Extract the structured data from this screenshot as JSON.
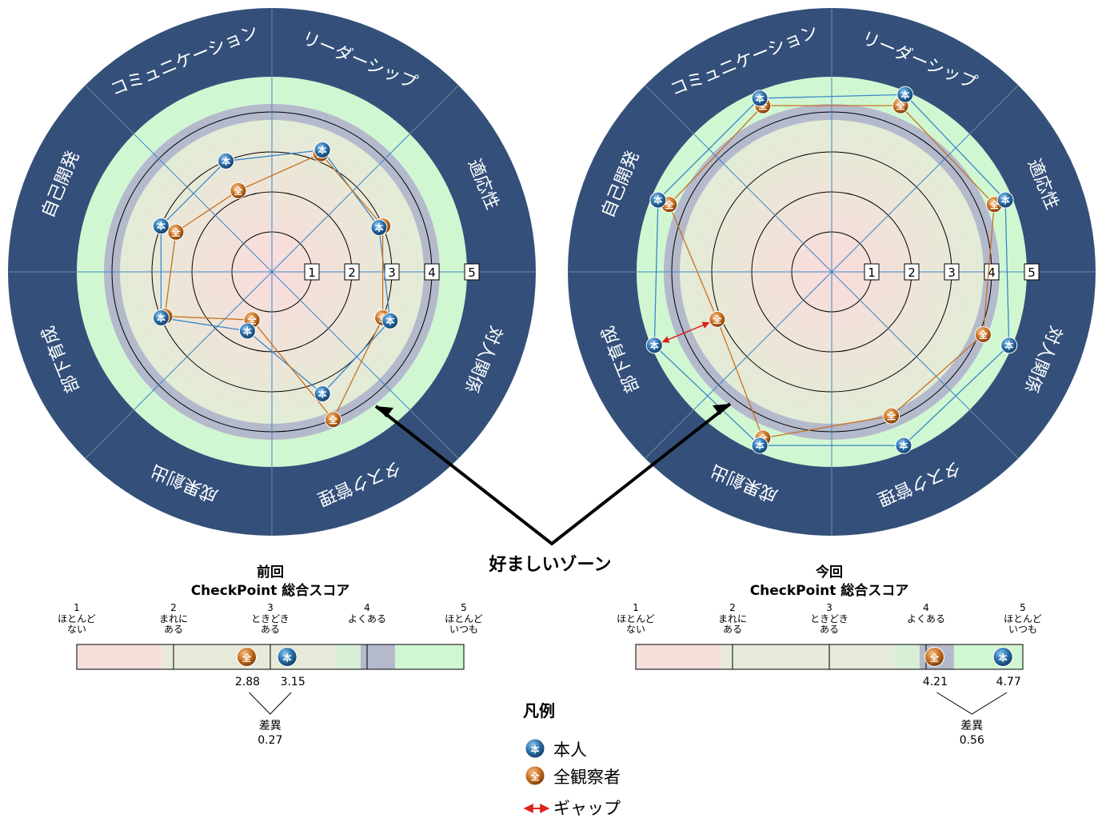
{
  "chart_data": [
    {
      "type": "radar",
      "panel": "previous",
      "categories": [
        "リーダーシップ",
        "適応性",
        "対人関係",
        "タスク管理",
        "成果創出",
        "部下育成",
        "自己開発",
        "コミュニケーション"
      ],
      "scale_labels": [
        "1",
        "2",
        "3",
        "4",
        "5"
      ],
      "rlim": [
        0,
        5
      ],
      "preferred_zone": [
        3.8,
        4.2
      ],
      "series": [
        {
          "name": "本人",
          "marker": "本",
          "color": "#2a6fa8",
          "line_color": "#3a86c8",
          "values": [
            3.3,
            2.9,
            3.2,
            3.3,
            1.6,
            3.0,
            3.0,
            3.0
          ]
        },
        {
          "name": "全観察者",
          "marker": "全",
          "color": "#c8701e",
          "line_color": "#c8701e",
          "values": [
            3.2,
            3.0,
            3.0,
            4.0,
            1.3,
            2.9,
            2.6,
            2.2
          ]
        }
      ],
      "gap_category": "成果創出"
    },
    {
      "type": "radar",
      "panel": "current",
      "categories": [
        "リーダーシップ",
        "適応性",
        "対人関係",
        "タスク管理",
        "成果創出",
        "部下育成",
        "自己開発",
        "コミュニケーション"
      ],
      "scale_labels": [
        "1",
        "2",
        "3",
        "4",
        "5"
      ],
      "rlim": [
        0,
        5
      ],
      "preferred_zone": [
        3.8,
        4.2
      ],
      "series": [
        {
          "name": "本人",
          "marker": "本",
          "color": "#2a6fa8",
          "line_color": "#3a86c8",
          "values": [
            4.8,
            4.7,
            4.8,
            4.7,
            4.7,
            4.8,
            4.7,
            4.7
          ]
        },
        {
          "name": "全観察者",
          "marker": "全",
          "color": "#c8701e",
          "line_color": "#c8701e",
          "values": [
            4.5,
            4.4,
            4.1,
            3.9,
            4.5,
            3.1,
            4.4,
            4.5
          ]
        }
      ],
      "gap_category": "部下育成"
    },
    {
      "type": "bar",
      "panel": "previous",
      "title_line1": "前回",
      "title_line2": "CheckPoint 総合スコア",
      "scale": [
        1,
        5
      ],
      "ticks": [
        {
          "value": 1,
          "num": "1",
          "lines": [
            "ほとんど",
            "ない"
          ]
        },
        {
          "value": 2,
          "num": "2",
          "lines": [
            "まれに",
            "ある"
          ]
        },
        {
          "value": 3,
          "num": "3",
          "lines": [
            "ときどき",
            "ある"
          ]
        },
        {
          "value": 4,
          "num": "4",
          "lines": [
            "よくある"
          ]
        },
        {
          "value": 5,
          "num": "5",
          "lines": [
            "ほとんど",
            "いつも"
          ]
        }
      ],
      "observers_score": 2.88,
      "self_score": 3.15,
      "observers_label": "2.88",
      "self_label": "3.15",
      "diff_label": "差異",
      "diff_value": "0.27"
    },
    {
      "type": "bar",
      "panel": "current",
      "title_line1": "今回",
      "title_line2": "CheckPoint 総合スコア",
      "scale": [
        1,
        5
      ],
      "ticks": [
        {
          "value": 1,
          "num": "1",
          "lines": [
            "ほとんど",
            "ない"
          ]
        },
        {
          "value": 2,
          "num": "2",
          "lines": [
            "まれに",
            "ある"
          ]
        },
        {
          "value": 3,
          "num": "3",
          "lines": [
            "ときどき",
            "ある"
          ]
        },
        {
          "value": 4,
          "num": "4",
          "lines": [
            "よくある"
          ]
        },
        {
          "value": 5,
          "num": "5",
          "lines": [
            "ほとんど",
            "いつも"
          ]
        }
      ],
      "observers_score": 4.21,
      "self_score": 4.77,
      "observers_label": "4.21",
      "self_label": "4.77",
      "diff_label": "差異",
      "diff_value": "0.56"
    }
  ],
  "zone_label": "好ましいゾーン",
  "legend": {
    "title": "凡例",
    "self": {
      "marker": "本",
      "label": "本人"
    },
    "observers": {
      "marker": "全",
      "label": "全観察者"
    },
    "gap": {
      "label": "ギャップ"
    }
  },
  "colors": {
    "ring": "#34507a",
    "ring_line": "#6f86a8",
    "zone_band": "#b4b9cc",
    "green": "#d1f7d2",
    "core": "#f9dfe0",
    "mid": "#e4ecd7",
    "axis": "#3a86c8",
    "self": "#2a6fa8",
    "observers": "#c8701e",
    "gap": "#e0201e"
  }
}
